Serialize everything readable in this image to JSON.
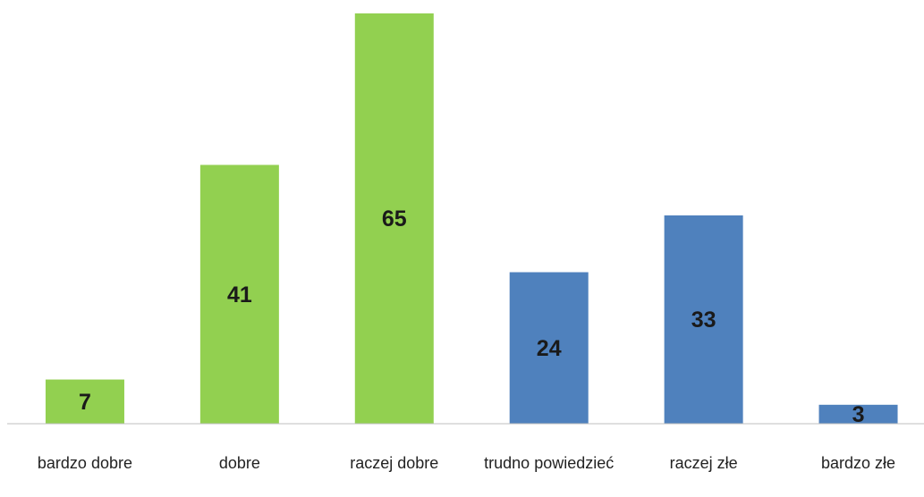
{
  "chart_data": {
    "type": "bar",
    "categories": [
      "bardzo dobre",
      "dobre",
      "raczej dobre",
      "trudno powiedzieć",
      "raczej złe",
      "bardzo złe"
    ],
    "values": [
      7,
      41,
      65,
      24,
      33,
      3
    ],
    "colors": [
      "#92d050",
      "#92d050",
      "#92d050",
      "#4f81bd",
      "#4f81bd",
      "#4f81bd"
    ]
  }
}
